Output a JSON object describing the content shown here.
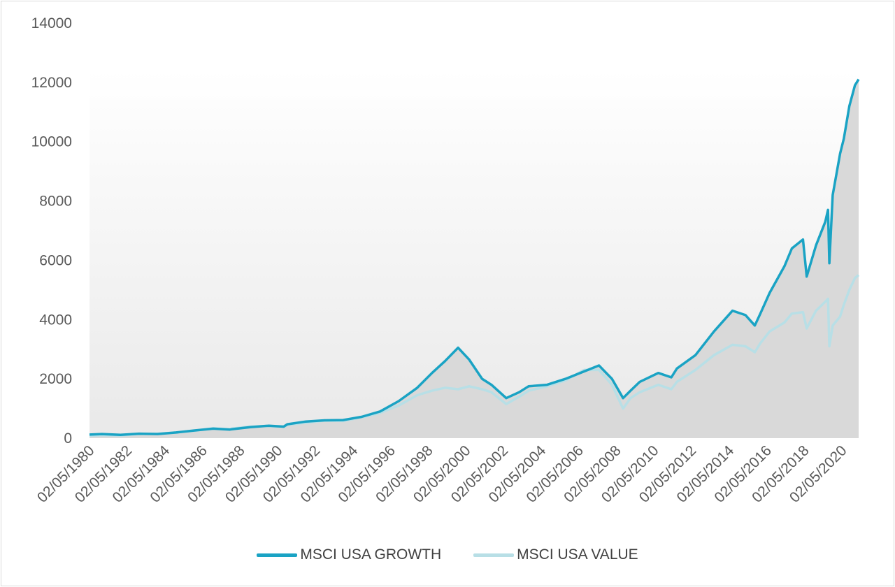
{
  "colors": {
    "growth": "#1aa3c4",
    "value": "#b8dfe6",
    "area": "#d9d9d9",
    "plot_top": "#ffffff",
    "text": "#595959"
  },
  "legend": {
    "growth_label": "MSCI USA GROWTH",
    "value_label": "MSCI USA VALUE"
  },
  "chart_data": {
    "type": "line",
    "title": "",
    "xlabel": "",
    "ylabel": "",
    "ylim": [
      0,
      14000
    ],
    "y_ticks": [
      0,
      2000,
      4000,
      6000,
      8000,
      10000,
      12000,
      14000
    ],
    "x_range": [
      1980.33,
      2021.8
    ],
    "x_tick_labels": [
      "02/05/1980",
      "02/05/1982",
      "02/05/1984",
      "02/05/1986",
      "02/05/1988",
      "02/05/1990",
      "02/05/1992",
      "02/05/1994",
      "02/05/1996",
      "02/05/1998",
      "02/05/2000",
      "02/05/2002",
      "02/05/2004",
      "02/05/2006",
      "02/05/2008",
      "02/05/2010",
      "02/05/2012",
      "02/05/2014",
      "02/05/2016",
      "02/05/2018",
      "02/05/2020"
    ],
    "grid": false,
    "legend_position": "bottom",
    "area_fill_under_series": true,
    "series": [
      {
        "name": "MSCI USA GROWTH",
        "points": [
          [
            1980.33,
            120
          ],
          [
            1981,
            140
          ],
          [
            1982,
            110
          ],
          [
            1983,
            150
          ],
          [
            1984,
            140
          ],
          [
            1985,
            190
          ],
          [
            1986,
            260
          ],
          [
            1987,
            320
          ],
          [
            1987.9,
            290
          ],
          [
            1988,
            300
          ],
          [
            1989,
            370
          ],
          [
            1990,
            420
          ],
          [
            1990.8,
            390
          ],
          [
            1991,
            470
          ],
          [
            1992,
            560
          ],
          [
            1993,
            600
          ],
          [
            1994,
            610
          ],
          [
            1995,
            720
          ],
          [
            1996,
            900
          ],
          [
            1997,
            1250
          ],
          [
            1998,
            1700
          ],
          [
            1998.8,
            2200
          ],
          [
            1999.5,
            2600
          ],
          [
            2000.2,
            3050
          ],
          [
            2000.8,
            2650
          ],
          [
            2001.5,
            2000
          ],
          [
            2002,
            1800
          ],
          [
            2002.8,
            1350
          ],
          [
            2003.5,
            1550
          ],
          [
            2004,
            1750
          ],
          [
            2005,
            1800
          ],
          [
            2006,
            2000
          ],
          [
            2007,
            2250
          ],
          [
            2007.8,
            2450
          ],
          [
            2008.5,
            2000
          ],
          [
            2009.1,
            1350
          ],
          [
            2009.5,
            1600
          ],
          [
            2010,
            1900
          ],
          [
            2011,
            2200
          ],
          [
            2011.7,
            2050
          ],
          [
            2012,
            2350
          ],
          [
            2013,
            2800
          ],
          [
            2014,
            3600
          ],
          [
            2015,
            4300
          ],
          [
            2015.7,
            4150
          ],
          [
            2016.2,
            3800
          ],
          [
            2016.5,
            4200
          ],
          [
            2017,
            4900
          ],
          [
            2017.8,
            5800
          ],
          [
            2018.2,
            6400
          ],
          [
            2018.8,
            6700
          ],
          [
            2019,
            5450
          ],
          [
            2019.5,
            6500
          ],
          [
            2020,
            7300
          ],
          [
            2020.15,
            7700
          ],
          [
            2020.22,
            5900
          ],
          [
            2020.4,
            8200
          ],
          [
            2020.8,
            9600
          ],
          [
            2021,
            10100
          ],
          [
            2021.3,
            11200
          ],
          [
            2021.6,
            11900
          ],
          [
            2021.8,
            12100
          ]
        ]
      },
      {
        "name": "MSCI USA VALUE",
        "points": [
          [
            1980.33,
            80
          ],
          [
            1981,
            100
          ],
          [
            1982,
            90
          ],
          [
            1983,
            140
          ],
          [
            1984,
            150
          ],
          [
            1985,
            190
          ],
          [
            1986,
            250
          ],
          [
            1987,
            330
          ],
          [
            1987.9,
            300
          ],
          [
            1988,
            320
          ],
          [
            1989,
            390
          ],
          [
            1990,
            410
          ],
          [
            1990.8,
            380
          ],
          [
            1991,
            450
          ],
          [
            1992,
            520
          ],
          [
            1993,
            590
          ],
          [
            1994,
            580
          ],
          [
            1995,
            700
          ],
          [
            1996,
            850
          ],
          [
            1997,
            1100
          ],
          [
            1998,
            1450
          ],
          [
            1998.8,
            1600
          ],
          [
            1999.5,
            1700
          ],
          [
            2000.2,
            1650
          ],
          [
            2000.8,
            1750
          ],
          [
            2001.5,
            1650
          ],
          [
            2002,
            1550
          ],
          [
            2002.8,
            1150
          ],
          [
            2003.5,
            1400
          ],
          [
            2004,
            1600
          ],
          [
            2005,
            1750
          ],
          [
            2006,
            1950
          ],
          [
            2007,
            2300
          ],
          [
            2007.8,
            2300
          ],
          [
            2008.5,
            1800
          ],
          [
            2009.1,
            1000
          ],
          [
            2009.5,
            1350
          ],
          [
            2010,
            1550
          ],
          [
            2011,
            1800
          ],
          [
            2011.7,
            1650
          ],
          [
            2012,
            1900
          ],
          [
            2013,
            2300
          ],
          [
            2014,
            2800
          ],
          [
            2015,
            3150
          ],
          [
            2015.7,
            3100
          ],
          [
            2016.2,
            2900
          ],
          [
            2016.5,
            3200
          ],
          [
            2017,
            3600
          ],
          [
            2017.8,
            3900
          ],
          [
            2018.2,
            4200
          ],
          [
            2018.8,
            4250
          ],
          [
            2019,
            3700
          ],
          [
            2019.5,
            4300
          ],
          [
            2020,
            4600
          ],
          [
            2020.15,
            4700
          ],
          [
            2020.22,
            3100
          ],
          [
            2020.4,
            3800
          ],
          [
            2020.8,
            4100
          ],
          [
            2021,
            4500
          ],
          [
            2021.3,
            5000
          ],
          [
            2021.6,
            5400
          ],
          [
            2021.8,
            5500
          ]
        ]
      }
    ]
  }
}
